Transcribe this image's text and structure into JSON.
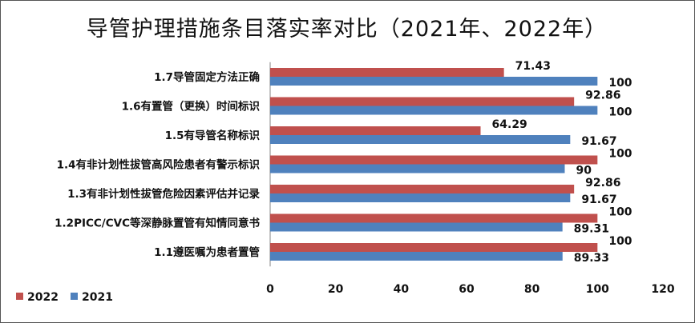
{
  "chart_data": {
    "type": "bar",
    "orientation": "horizontal",
    "title": "导管护理措施条目落实率对比（2021年、2022年）",
    "categories": [
      "1.7导管固定方法正确",
      "1.6有置管（更换）时间标识",
      "1.5有导管名称标识",
      "1.4有非计划性拔管高风险患者有警示标识",
      "1.3有非计划性拔管危险因素评估并记录",
      "1.2PICC/CVC等深静脉置管有知情同意书",
      "1.1遵医嘱为患者置管"
    ],
    "series": [
      {
        "name": "2022",
        "color": "#C0504D",
        "values": [
          71.43,
          92.86,
          64.29,
          100,
          92.86,
          100,
          100
        ],
        "labels": [
          "71.43",
          "92.86",
          "64.29",
          "100",
          "92.86",
          "100",
          "100"
        ]
      },
      {
        "name": "2021",
        "color": "#4F81BD",
        "values": [
          100,
          100,
          91.67,
          90,
          91.67,
          89.31,
          89.33
        ],
        "labels": [
          "100",
          "100",
          "91.67",
          "90",
          "91.67",
          "89.31",
          "89.33"
        ]
      }
    ],
    "xlim": [
      0,
      120
    ],
    "xticks": [
      "0",
      "20",
      "40",
      "60",
      "80",
      "100",
      "120"
    ],
    "grid": false,
    "legend_position": "bottom-left"
  }
}
